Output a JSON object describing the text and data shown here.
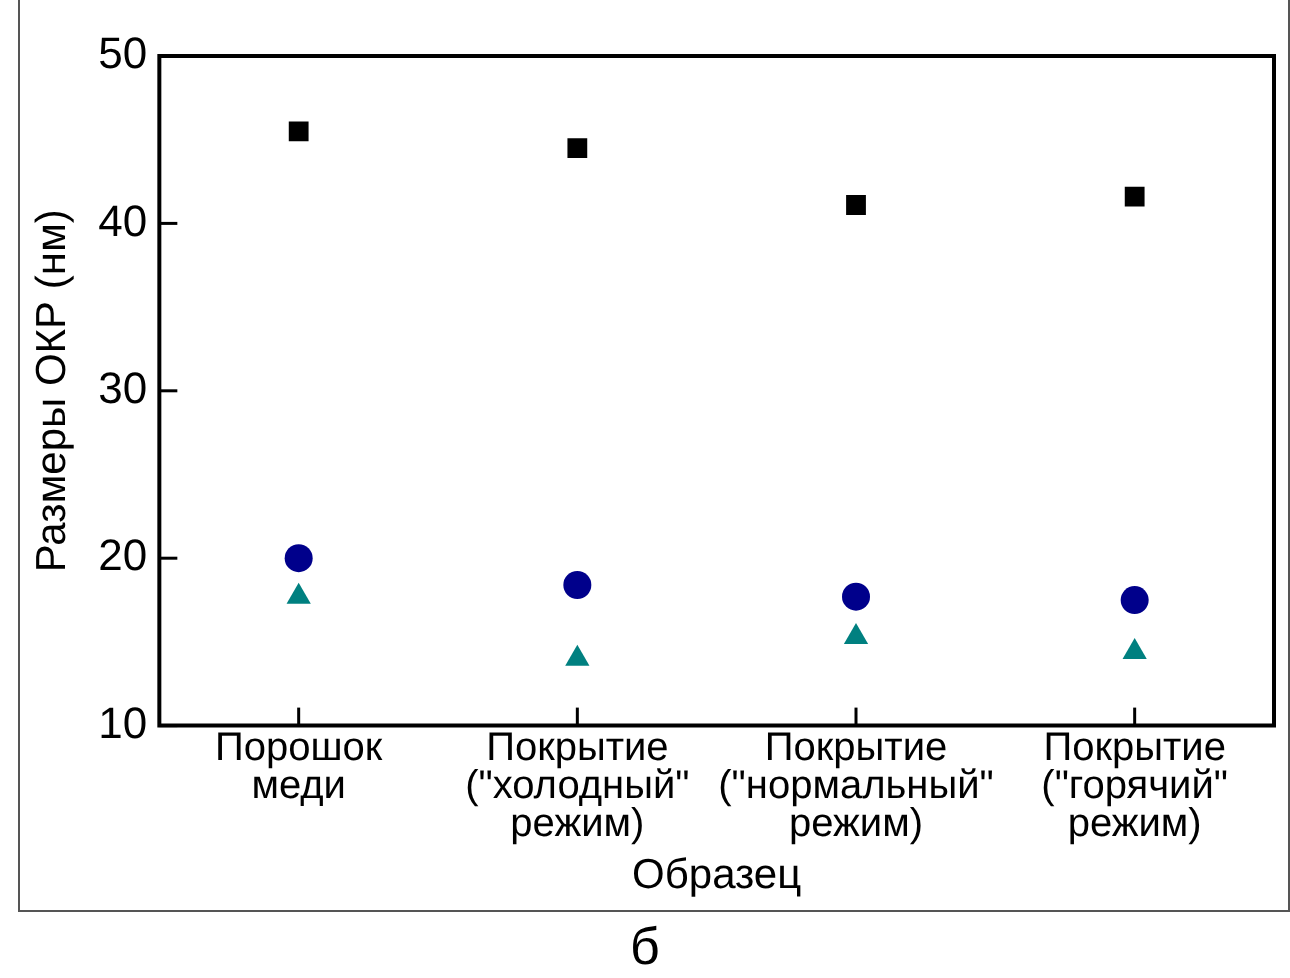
{
  "chart_data": {
    "type": "scatter",
    "xlabel": "Образец",
    "ylabel": "Размеры ОКР (нм)",
    "categories": [
      "Порошок\nмеди",
      "Покрытие\n(\"холодный\"\nрежим)",
      "Покрытие\n(\"нормальный\"\nрежим)",
      "Покрытие\n(\"горячий\"\nрежим)"
    ],
    "series": [
      {
        "color": "#000000",
        "marker": "square",
        "values": [
          45.5,
          44.5,
          41.1,
          41.6
        ]
      },
      {
        "color": "#00008b",
        "marker": "circle",
        "values": [
          20.0,
          18.4,
          17.7,
          17.5
        ]
      },
      {
        "color": "#008080",
        "marker": "triangle",
        "values": [
          17.7,
          14.0,
          15.3,
          14.4
        ]
      }
    ],
    "ylim": [
      10,
      50
    ],
    "yticks": [
      10,
      20,
      30,
      40,
      50
    ],
    "grid": false,
    "legend": false,
    "annotations": [
      "б"
    ]
  }
}
